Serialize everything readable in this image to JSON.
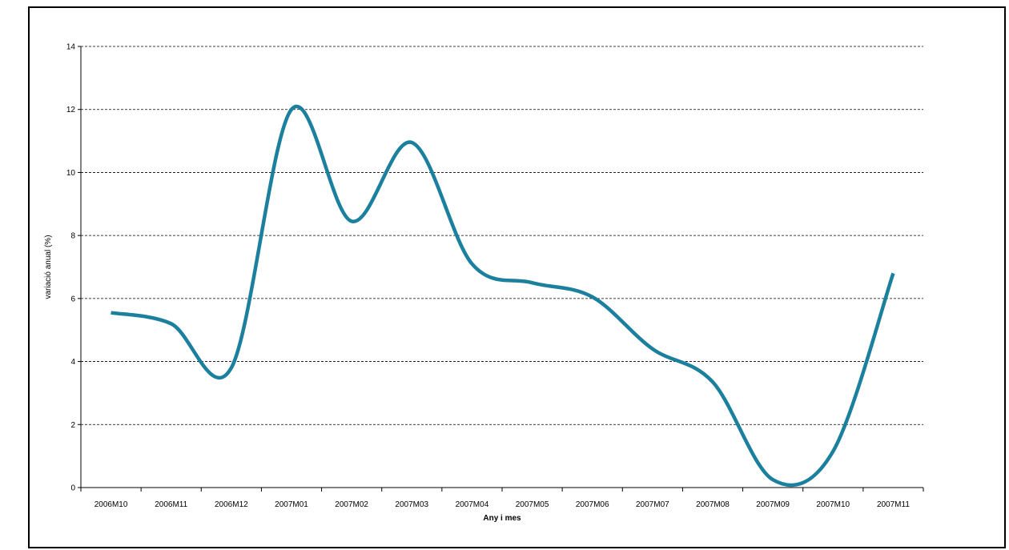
{
  "chart_data": {
    "type": "line",
    "title": "",
    "xlabel": "Any i mes",
    "ylabel": "variació anual (%)",
    "categories": [
      "2006M10",
      "2006M11",
      "2006M12",
      "2007M01",
      "2007M02",
      "2007M03",
      "2007M04",
      "2007M05",
      "2007M06",
      "2007M07",
      "2007M08",
      "2007M09",
      "2007M10",
      "2007M11"
    ],
    "series": [
      {
        "values": [
          5.55,
          5.2,
          3.8,
          12.0,
          8.45,
          10.95,
          7.1,
          6.5,
          6.05,
          4.4,
          3.35,
          0.25,
          1.15,
          6.8
        ]
      }
    ],
    "ylim": [
      0,
      14
    ],
    "yticks": [
      0,
      2,
      4,
      6,
      8,
      10,
      12,
      14
    ],
    "grid": true,
    "grid_style": "dashed",
    "legend": "none",
    "line_color": "#1b7f9e"
  }
}
